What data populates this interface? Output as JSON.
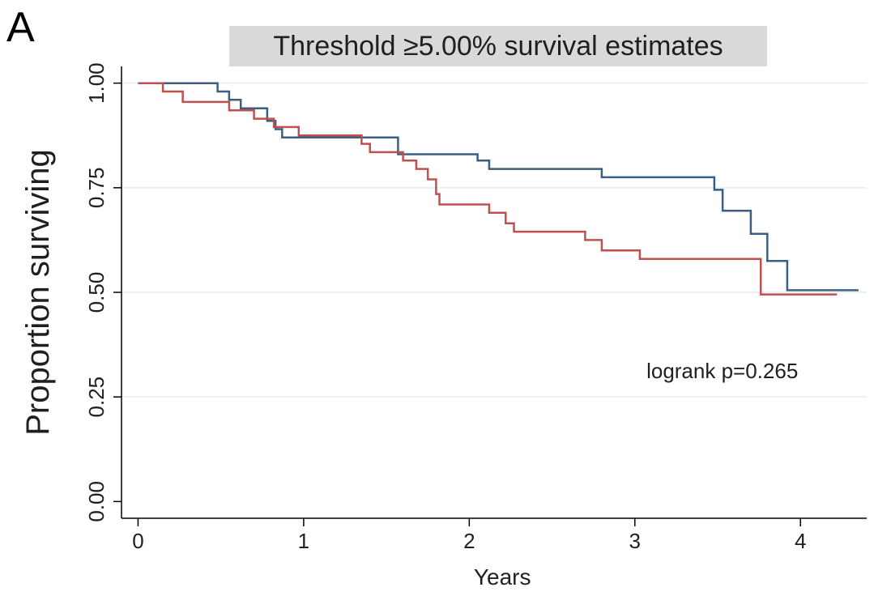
{
  "panel_label": "A",
  "chart_data": {
    "type": "line",
    "step": true,
    "title": "Threshold ≥5.00% survival estimates",
    "xlabel": "Years",
    "ylabel": "Proportion surviving",
    "xlim": [
      -0.1,
      4.4
    ],
    "ylim": [
      -0.04,
      1.04
    ],
    "xticks": [
      0,
      1,
      2,
      3,
      4
    ],
    "xtick_labels": [
      "0",
      "1",
      "2",
      "3",
      "4"
    ],
    "yticks": [
      0,
      0.25,
      0.5,
      0.75,
      1.0
    ],
    "ytick_labels": [
      "0.00",
      "0.25",
      "0.50",
      "0.75",
      "1.00"
    ],
    "grid": "horizontal",
    "annotation": "logrank p=0.265",
    "annotation_pos": {
      "x": 3.07,
      "y": 0.295
    },
    "series": [
      {
        "color": "#3b5f83",
        "points": [
          [
            0,
            1.0
          ],
          [
            0.48,
            1.0
          ],
          [
            0.48,
            0.98
          ],
          [
            0.55,
            0.98
          ],
          [
            0.55,
            0.96
          ],
          [
            0.62,
            0.96
          ],
          [
            0.62,
            0.94
          ],
          [
            0.78,
            0.94
          ],
          [
            0.78,
            0.91
          ],
          [
            0.83,
            0.91
          ],
          [
            0.83,
            0.89
          ],
          [
            0.87,
            0.89
          ],
          [
            0.87,
            0.87
          ],
          [
            1.57,
            0.87
          ],
          [
            1.57,
            0.83
          ],
          [
            2.05,
            0.83
          ],
          [
            2.05,
            0.815
          ],
          [
            2.12,
            0.815
          ],
          [
            2.12,
            0.795
          ],
          [
            2.8,
            0.795
          ],
          [
            2.8,
            0.775
          ],
          [
            3.48,
            0.775
          ],
          [
            3.48,
            0.745
          ],
          [
            3.53,
            0.745
          ],
          [
            3.53,
            0.695
          ],
          [
            3.7,
            0.695
          ],
          [
            3.7,
            0.64
          ],
          [
            3.8,
            0.64
          ],
          [
            3.8,
            0.575
          ],
          [
            3.92,
            0.575
          ],
          [
            3.92,
            0.505
          ],
          [
            4.35,
            0.505
          ]
        ]
      },
      {
        "color": "#c0504d",
        "points": [
          [
            0,
            1.0
          ],
          [
            0.15,
            1.0
          ],
          [
            0.15,
            0.98
          ],
          [
            0.27,
            0.98
          ],
          [
            0.27,
            0.955
          ],
          [
            0.55,
            0.955
          ],
          [
            0.55,
            0.935
          ],
          [
            0.7,
            0.935
          ],
          [
            0.7,
            0.915
          ],
          [
            0.82,
            0.915
          ],
          [
            0.82,
            0.895
          ],
          [
            0.97,
            0.895
          ],
          [
            0.97,
            0.875
          ],
          [
            1.35,
            0.875
          ],
          [
            1.35,
            0.855
          ],
          [
            1.4,
            0.855
          ],
          [
            1.4,
            0.835
          ],
          [
            1.6,
            0.835
          ],
          [
            1.6,
            0.815
          ],
          [
            1.68,
            0.815
          ],
          [
            1.68,
            0.795
          ],
          [
            1.75,
            0.795
          ],
          [
            1.75,
            0.77
          ],
          [
            1.8,
            0.77
          ],
          [
            1.8,
            0.735
          ],
          [
            1.82,
            0.735
          ],
          [
            1.82,
            0.71
          ],
          [
            2.12,
            0.71
          ],
          [
            2.12,
            0.69
          ],
          [
            2.22,
            0.69
          ],
          [
            2.22,
            0.665
          ],
          [
            2.27,
            0.665
          ],
          [
            2.27,
            0.645
          ],
          [
            2.7,
            0.645
          ],
          [
            2.7,
            0.625
          ],
          [
            2.8,
            0.625
          ],
          [
            2.8,
            0.6
          ],
          [
            3.03,
            0.6
          ],
          [
            3.03,
            0.58
          ],
          [
            3.76,
            0.58
          ],
          [
            3.76,
            0.495
          ],
          [
            4.22,
            0.495
          ]
        ]
      }
    ]
  }
}
